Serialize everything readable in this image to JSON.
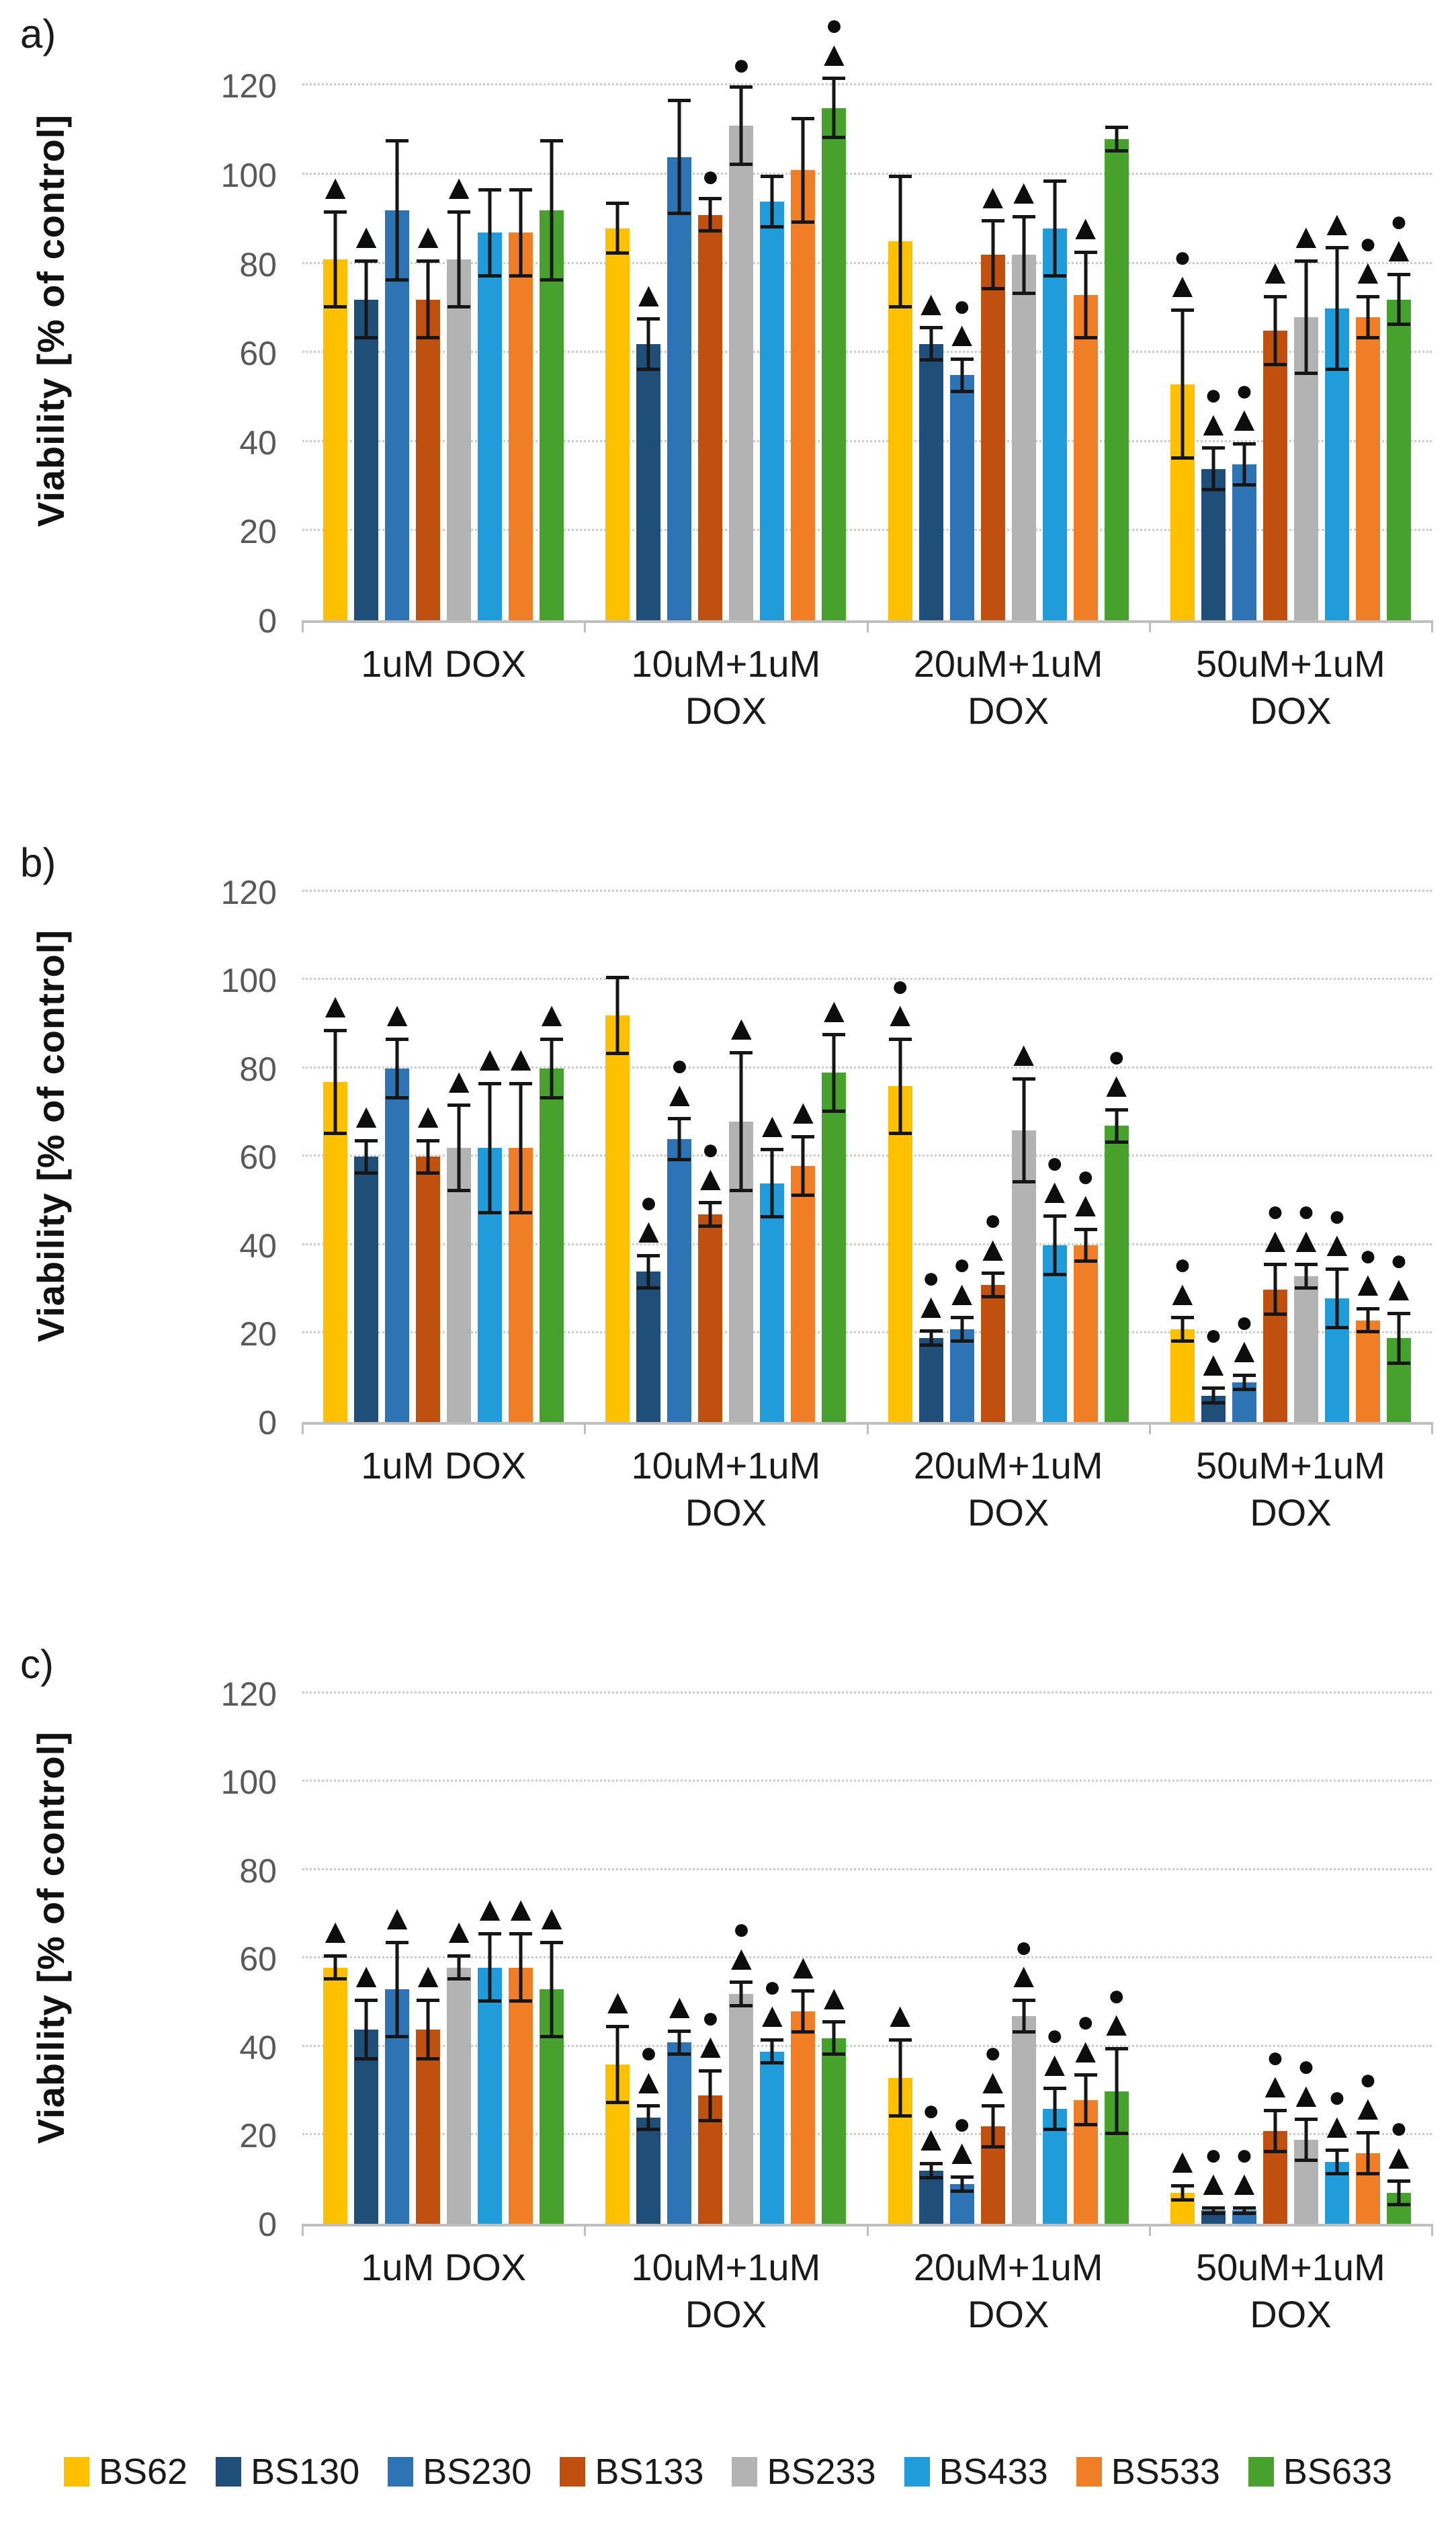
{
  "figure_title": "",
  "marker_glyphs": {
    "triangle": "▲",
    "circle": "●"
  },
  "legend": {
    "items": [
      {
        "label": "BS62",
        "color": "#FFC000"
      },
      {
        "label": "BS130",
        "color": "#1F4E79"
      },
      {
        "label": "BS230",
        "color": "#2E74B5"
      },
      {
        "label": "BS133",
        "color": "#BF500F"
      },
      {
        "label": "BS233",
        "color": "#B3B3B3"
      },
      {
        "label": "BS433",
        "color": "#219CDB"
      },
      {
        "label": "BS533",
        "color": "#F07E26"
      },
      {
        "label": "BS633",
        "color": "#46A22C"
      }
    ]
  },
  "chart_data": [
    {
      "id": "a",
      "panel_label": "a)",
      "type": "bar",
      "title": "",
      "xlabel": "",
      "ylabel": "Viability [% of control]",
      "ylim": [
        0,
        135
      ],
      "yticks": [
        0,
        20,
        40,
        60,
        80,
        100,
        120
      ],
      "grid": "horizontal-dotted",
      "legend_position": "bottom-shared",
      "categories": [
        "1uM DOX",
        "10uM+1uM\nDOX",
        "20uM+1uM\nDOX",
        "50uM+1uM\nDOX"
      ],
      "error_bars": "plus-minus",
      "series": [
        {
          "name": "BS62",
          "color": "#FFC000",
          "values": [
            81,
            88,
            85,
            53
          ],
          "errors": [
            11,
            6,
            15,
            17
          ],
          "markers": [
            "t",
            "",
            "",
            "ct"
          ]
        },
        {
          "name": "BS130",
          "color": "#1F4E79",
          "values": [
            72,
            62,
            62,
            34
          ],
          "errors": [
            9,
            6,
            4,
            5
          ],
          "markers": [
            "t",
            "t",
            "t",
            "ct"
          ]
        },
        {
          "name": "BS230",
          "color": "#2E74B5",
          "values": [
            92,
            104,
            55,
            35
          ],
          "errors": [
            16,
            13,
            4,
            5
          ],
          "markers": [
            "",
            "",
            "ct",
            "ct"
          ]
        },
        {
          "name": "BS133",
          "color": "#BF500F",
          "values": [
            72,
            91,
            82,
            65
          ],
          "errors": [
            9,
            4,
            8,
            8
          ],
          "markers": [
            "t",
            "c",
            "t",
            "t"
          ]
        },
        {
          "name": "BS233",
          "color": "#B3B3B3",
          "values": [
            81,
            111,
            82,
            68
          ],
          "errors": [
            11,
            9,
            9,
            13
          ],
          "markers": [
            "t",
            "c",
            "t",
            "t"
          ]
        },
        {
          "name": "BS433",
          "color": "#219CDB",
          "values": [
            87,
            94,
            88,
            70
          ],
          "errors": [
            10,
            6,
            11,
            14
          ],
          "markers": [
            "",
            "",
            "",
            "t"
          ]
        },
        {
          "name": "BS533",
          "color": "#F07E26",
          "values": [
            87,
            101,
            73,
            68
          ],
          "errors": [
            10,
            12,
            10,
            5
          ],
          "markers": [
            "",
            "",
            "t",
            "ct"
          ]
        },
        {
          "name": "BS633",
          "color": "#46A22C",
          "values": [
            92,
            115,
            108,
            72
          ],
          "errors": [
            16,
            7,
            3,
            6
          ],
          "markers": [
            "",
            "ct",
            "",
            "ct"
          ]
        }
      ]
    },
    {
      "id": "b",
      "panel_label": "b)",
      "type": "bar",
      "title": "",
      "xlabel": "",
      "ylabel": "Viability [% of control]",
      "ylim": [
        0,
        130
      ],
      "yticks": [
        0,
        20,
        40,
        60,
        80,
        100,
        120
      ],
      "grid": "horizontal-dotted",
      "legend_position": "bottom-shared",
      "categories": [
        "1uM DOX",
        "10uM+1uM\nDOX",
        "20uM+1uM\nDOX",
        "50uM+1uM\nDOX"
      ],
      "error_bars": "plus-minus",
      "series": [
        {
          "name": "BS62",
          "color": "#FFC000",
          "values": [
            77,
            92,
            76,
            21
          ],
          "errors": [
            12,
            9,
            11,
            3
          ],
          "markers": [
            "t",
            "",
            "ct",
            "ct"
          ]
        },
        {
          "name": "BS130",
          "color": "#1F4E79",
          "values": [
            60,
            34,
            19,
            6
          ],
          "errors": [
            4,
            4,
            2,
            2
          ],
          "markers": [
            "t",
            "ct",
            "ct",
            "ct"
          ]
        },
        {
          "name": "BS230",
          "color": "#2E74B5",
          "values": [
            80,
            64,
            21,
            9
          ],
          "errors": [
            7,
            5,
            3,
            2
          ],
          "markers": [
            "t",
            "ct",
            "ct",
            "ct"
          ]
        },
        {
          "name": "BS133",
          "color": "#BF500F",
          "values": [
            60,
            47,
            31,
            30
          ],
          "errors": [
            4,
            3,
            3,
            6
          ],
          "markers": [
            "t",
            "ct",
            "ct",
            "ct"
          ]
        },
        {
          "name": "BS233",
          "color": "#B3B3B3",
          "values": [
            62,
            68,
            66,
            33
          ],
          "errors": [
            10,
            16,
            12,
            3
          ],
          "markers": [
            "t",
            "t",
            "t",
            "ct"
          ]
        },
        {
          "name": "BS433",
          "color": "#219CDB",
          "values": [
            62,
            54,
            40,
            28
          ],
          "errors": [
            15,
            8,
            7,
            7
          ],
          "markers": [
            "t",
            "t",
            "ct",
            "ct"
          ]
        },
        {
          "name": "BS533",
          "color": "#F07E26",
          "values": [
            62,
            58,
            40,
            23
          ],
          "errors": [
            15,
            7,
            4,
            3
          ],
          "markers": [
            "t",
            "t",
            "ct",
            "ct"
          ]
        },
        {
          "name": "BS633",
          "color": "#46A22C",
          "values": [
            80,
            79,
            67,
            19
          ],
          "errors": [
            7,
            9,
            4,
            6
          ],
          "markers": [
            "t",
            "t",
            "ct",
            "ct"
          ]
        }
      ]
    },
    {
      "id": "c",
      "panel_label": "c)",
      "type": "bar",
      "title": "",
      "xlabel": "",
      "ylabel": "Viability [% of control]",
      "ylim": [
        0,
        130
      ],
      "yticks": [
        0,
        20,
        40,
        60,
        80,
        100,
        120
      ],
      "grid": "horizontal-dotted",
      "legend_position": "bottom-shared",
      "categories": [
        "1uM DOX",
        "10uM+1uM\nDOX",
        "20uM+1uM\nDOX",
        "50uM+1uM\nDOX"
      ],
      "error_bars": "plus-minus",
      "series": [
        {
          "name": "BS62",
          "color": "#FFC000",
          "values": [
            58,
            36,
            33,
            7
          ],
          "errors": [
            3,
            9,
            9,
            2
          ],
          "markers": [
            "t",
            "t",
            "t",
            "t"
          ]
        },
        {
          "name": "BS130",
          "color": "#1F4E79",
          "values": [
            44,
            24,
            12,
            3
          ],
          "errors": [
            7,
            3,
            2,
            1
          ],
          "markers": [
            "t",
            "ct",
            "ct",
            "ct"
          ]
        },
        {
          "name": "BS230",
          "color": "#2E74B5",
          "values": [
            53,
            41,
            9,
            3
          ],
          "errors": [
            11,
            3,
            2,
            1
          ],
          "markers": [
            "t",
            "t",
            "ct",
            "ct"
          ]
        },
        {
          "name": "BS133",
          "color": "#BF500F",
          "values": [
            44,
            29,
            22,
            21
          ],
          "errors": [
            7,
            6,
            5,
            5
          ],
          "markers": [
            "t",
            "ct",
            "ct",
            "ct"
          ]
        },
        {
          "name": "BS233",
          "color": "#B3B3B3",
          "values": [
            58,
            52,
            47,
            19
          ],
          "errors": [
            3,
            3,
            4,
            5
          ],
          "markers": [
            "t",
            "ct",
            "ct",
            "ct"
          ]
        },
        {
          "name": "BS433",
          "color": "#219CDB",
          "values": [
            58,
            39,
            26,
            14
          ],
          "errors": [
            8,
            3,
            5,
            3
          ],
          "markers": [
            "t",
            "ct",
            "ct",
            "ct"
          ]
        },
        {
          "name": "BS533",
          "color": "#F07E26",
          "values": [
            58,
            48,
            28,
            16
          ],
          "errors": [
            8,
            5,
            6,
            5
          ],
          "markers": [
            "t",
            "t",
            "ct",
            "ct"
          ]
        },
        {
          "name": "BS633",
          "color": "#46A22C",
          "values": [
            53,
            42,
            30,
            7
          ],
          "errors": [
            11,
            4,
            10,
            3
          ],
          "markers": [
            "t",
            "t",
            "ct",
            "ct"
          ]
        }
      ]
    }
  ]
}
